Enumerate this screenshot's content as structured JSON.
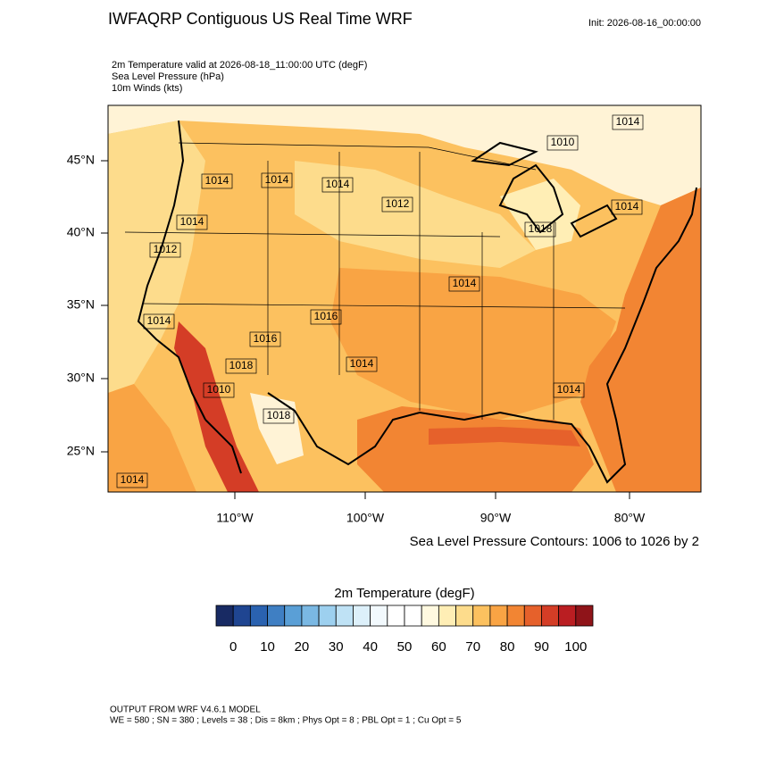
{
  "header": {
    "title": "IWFAQRP Contiguous US Real Time WRF",
    "init": "Init: 2026-08-16_00:00:00"
  },
  "fields": [
    "2m Temperature valid at 2026-08-18_11:00:00 UTC   (degF)",
    "Sea Level Pressure   (hPa)",
    "10m Winds   (kts)"
  ],
  "axes": {
    "lat": [
      "45°N",
      "40°N",
      "35°N",
      "30°N",
      "25°N"
    ],
    "lon": [
      "110°W",
      "100°W",
      "90°W",
      "80°W"
    ]
  },
  "map": {
    "contour_labels": [
      "1014",
      "1010",
      "1014",
      "1014",
      "1014",
      "1012",
      "1014",
      "1012",
      "1014",
      "1018",
      "1014",
      "1014",
      "1016",
      "1016",
      "1018",
      "1014",
      "1010",
      "1014",
      "1018",
      "1014"
    ],
    "contour_info": "Sea Level Pressure Contours: 1006 to 1026 by 2"
  },
  "colorbar": {
    "title": "2m Temperature  (degF)",
    "colors": [
      "#182a63",
      "#1f4591",
      "#2a62b0",
      "#3f7fc3",
      "#5a9fd6",
      "#7ab8e3",
      "#9dd0ef",
      "#bfe2f5",
      "#ddf0fa",
      "#f2f9fd",
      "#ffffff",
      "#ffffff",
      "#fff9e0",
      "#ffeeb5",
      "#fddc8c",
      "#fcc15f",
      "#f9a444",
      "#f28533",
      "#e6612b",
      "#d43d26",
      "#ba1e22",
      "#8f1419"
    ],
    "ticks": [
      0,
      10,
      20,
      30,
      40,
      50,
      60,
      70,
      80,
      90,
      100
    ]
  },
  "footer": [
    "OUTPUT FROM WRF V4.6.1 MODEL",
    "WE = 580 ; SN = 380 ; Levels = 38 ; Dis = 8km ; Phys Opt = 8 ; PBL Opt = 1 ; Cu Opt = 5"
  ]
}
